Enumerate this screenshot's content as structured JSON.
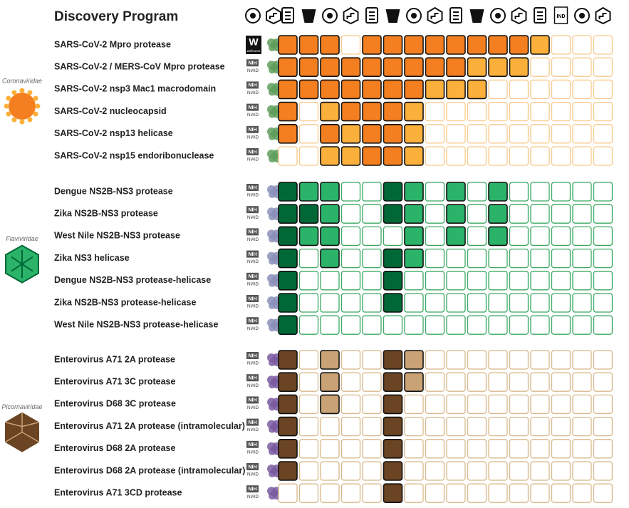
{
  "header": {
    "title": "Discovery Program",
    "ind_label": "IND"
  },
  "groups": [
    {
      "family": "Coronaviridae",
      "palette": {
        "dark": "#f47f20",
        "light": "#fbb03b",
        "edge": "#f8c98c"
      },
      "rows": [
        {
          "name": "SARS-CoV-2 Mpro protease",
          "funder": "W",
          "funder_sub": "wellcome",
          "cells": [
            2,
            2,
            2,
            0,
            2,
            2,
            2,
            2,
            2,
            2,
            2,
            2,
            1,
            0,
            0,
            0
          ]
        },
        {
          "name": "SARS-CoV-2 / MERS-CoV Mpro protease",
          "funder": "NIH",
          "funder_sub": "NIAID",
          "cells": [
            2,
            2,
            2,
            2,
            2,
            2,
            2,
            2,
            2,
            1,
            1,
            1,
            0,
            0,
            0,
            0
          ]
        },
        {
          "name": "SARS-CoV-2 nsp3 Mac1 macrodomain",
          "funder": "NIH",
          "funder_sub": "NIAID",
          "cells": [
            2,
            2,
            2,
            2,
            2,
            2,
            2,
            1,
            1,
            1,
            0,
            0,
            0,
            0,
            0,
            0
          ]
        },
        {
          "name": "SARS-CoV-2 nucleocapsid",
          "funder": "NIH",
          "funder_sub": "NIAID",
          "cells": [
            2,
            0,
            1,
            2,
            2,
            2,
            1,
            0,
            0,
            0,
            0,
            0,
            0,
            0,
            0,
            0
          ]
        },
        {
          "name": "SARS-CoV-2 nsp13 helicase",
          "funder": "NIH",
          "funder_sub": "NIAID",
          "cells": [
            2,
            0,
            2,
            1,
            2,
            2,
            1,
            0,
            0,
            0,
            0,
            0,
            0,
            0,
            0,
            0
          ]
        },
        {
          "name": "SARS-CoV-2 nsp15 endoribonuclease",
          "funder": "NIH",
          "funder_sub": "NIAID",
          "cells": [
            0,
            0,
            1,
            1,
            2,
            2,
            1,
            0,
            0,
            0,
            0,
            0,
            0,
            0,
            0,
            0
          ]
        }
      ]
    },
    {
      "family": "Flaviviridae",
      "palette": {
        "dark": "#006837",
        "light": "#2bb36a",
        "edge": "#3aa862"
      },
      "rows": [
        {
          "name": "Dengue NS2B-NS3 protease",
          "funder": "NIH",
          "funder_sub": "NIAID",
          "cells": [
            2,
            1,
            1,
            0,
            0,
            2,
            1,
            0,
            1,
            0,
            1,
            0,
            0,
            0,
            0,
            0
          ]
        },
        {
          "name": "Zika NS2B-NS3 protease",
          "funder": "NIH",
          "funder_sub": "NIAID",
          "cells": [
            2,
            2,
            1,
            0,
            0,
            2,
            1,
            0,
            1,
            0,
            1,
            0,
            0,
            0,
            0,
            0
          ]
        },
        {
          "name": "West Nile NS2B-NS3 protease",
          "funder": "NIH",
          "funder_sub": "NIAID",
          "cells": [
            2,
            1,
            1,
            0,
            0,
            0,
            1,
            0,
            1,
            0,
            1,
            0,
            0,
            0,
            0,
            0
          ]
        },
        {
          "name": "Zika NS3 helicase",
          "funder": "NIH",
          "funder_sub": "NIAID",
          "cells": [
            2,
            0,
            1,
            0,
            0,
            2,
            1,
            0,
            0,
            0,
            0,
            0,
            0,
            0,
            0,
            0
          ]
        },
        {
          "name": "Dengue NS2B-NS3 protease-helicase",
          "funder": "NIH",
          "funder_sub": "NIAID",
          "cells": [
            2,
            0,
            0,
            0,
            0,
            2,
            0,
            0,
            0,
            0,
            0,
            0,
            0,
            0,
            0,
            0
          ]
        },
        {
          "name": "Zika NS2B-NS3 protease-helicase",
          "funder": "NIH",
          "funder_sub": "NIAID",
          "cells": [
            2,
            0,
            0,
            0,
            0,
            2,
            0,
            0,
            0,
            0,
            0,
            0,
            0,
            0,
            0,
            0
          ]
        },
        {
          "name": "West Nile NS2B-NS3 protease-helicase",
          "funder": "NIH",
          "funder_sub": "NIAID",
          "cells": [
            2,
            0,
            0,
            0,
            0,
            0,
            0,
            0,
            0,
            0,
            0,
            0,
            0,
            0,
            0,
            0
          ]
        }
      ]
    },
    {
      "family": "Picornaviridae",
      "palette": {
        "dark": "#6b4423",
        "light": "#c9a276",
        "edge": "#d8b88a"
      },
      "rows": [
        {
          "name": "Enterovirus A71 2A protease",
          "funder": "NIH",
          "funder_sub": "NIAID",
          "cells": [
            2,
            0,
            1,
            0,
            0,
            2,
            1,
            0,
            0,
            0,
            0,
            0,
            0,
            0,
            0,
            0
          ]
        },
        {
          "name": "Enterovirus A71 3C protease",
          "funder": "NIH",
          "funder_sub": "NIAID",
          "cells": [
            2,
            0,
            1,
            0,
            0,
            2,
            1,
            0,
            0,
            0,
            0,
            0,
            0,
            0,
            0,
            0
          ]
        },
        {
          "name": "Enterovirus D68 3C protease",
          "funder": "NIH",
          "funder_sub": "NIAID",
          "cells": [
            2,
            0,
            1,
            0,
            0,
            2,
            0,
            0,
            0,
            0,
            0,
            0,
            0,
            0,
            0,
            0
          ]
        },
        {
          "name": "Enterovirus A71 2A protease (intramolecular)",
          "funder": "NIH",
          "funder_sub": "NIAID",
          "cells": [
            2,
            0,
            0,
            0,
            0,
            2,
            0,
            0,
            0,
            0,
            0,
            0,
            0,
            0,
            0,
            0
          ]
        },
        {
          "name": "Enterovirus D68 2A protease",
          "funder": "NIH",
          "funder_sub": "NIAID",
          "cells": [
            2,
            0,
            0,
            0,
            0,
            2,
            0,
            0,
            0,
            0,
            0,
            0,
            0,
            0,
            0,
            0
          ]
        },
        {
          "name": "Enterovirus D68 2A protease (intramolecular)",
          "funder": "NIH",
          "funder_sub": "NIAID",
          "cells": [
            2,
            0,
            0,
            0,
            0,
            2,
            0,
            0,
            0,
            0,
            0,
            0,
            0,
            0,
            0,
            0
          ]
        },
        {
          "name": "Enterovirus A71 3CD protease",
          "funder": "NIH",
          "funder_sub": "NIAID",
          "cells": [
            0,
            0,
            0,
            0,
            0,
            2,
            0,
            0,
            0,
            0,
            0,
            0,
            0,
            0,
            0,
            0
          ]
        }
      ]
    }
  ]
}
